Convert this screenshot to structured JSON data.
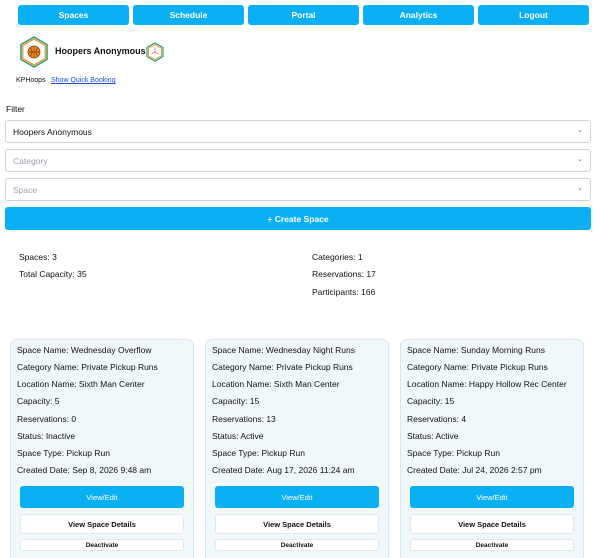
{
  "nav": [
    "Spaces",
    "Schedule",
    "Portal",
    "Analytics",
    "Logout"
  ],
  "org": {
    "name": "Hoopers Anonymous",
    "handle": "KPHoops",
    "quick_booking_link": "Show Quick Booking"
  },
  "filter": {
    "label": "Filter",
    "organization_value": "Hoopers Anonymous",
    "category_placeholder": "Category",
    "space_placeholder": "Space"
  },
  "create_button": "+ Create Space",
  "stats": {
    "spaces": "Spaces: 3",
    "total_capacity": "Total Capacity: 35",
    "categories": "Categories: 1",
    "reservations": "Reservations: 17",
    "participants": "Participants: 166"
  },
  "cards": [
    {
      "space_name": "Space Name: Wednesday Overflow",
      "category_name": "Category Name: Private Pickup Runs",
      "location_name": "Location Name: Sixth Man Center",
      "capacity": "Capacity: 5",
      "reservations": "Reservations: 0",
      "status": "Status: Inactive",
      "space_type": "Space Type: Pickup Run",
      "created_date": "Created Date: Sep 8, 2026 9:48 am",
      "view_edit": "View/Edit",
      "view_details": "View Space Details",
      "deactivate": "Deactivate"
    },
    {
      "space_name": "Space Name: Wednesday Night Runs",
      "category_name": "Category Name: Private Pickup Runs",
      "location_name": "Location Name: Sixth Man Center",
      "capacity": "Capacity: 15",
      "reservations": "Reservations: 13",
      "status": "Status: Active",
      "space_type": "Space Type: Pickup Run",
      "created_date": "Created Date: Aug 17, 2026 11:24 am",
      "view_edit": "View/Edit",
      "view_details": "View Space Details",
      "deactivate": "Deactivate"
    },
    {
      "space_name": "Space Name: Sunday Morning Runs",
      "category_name": "Category Name: Private Pickup Runs",
      "location_name": "Location Name: Happy Hollow Rec Center",
      "capacity": "Capacity: 15",
      "reservations": "Reservations: 4",
      "status": "Status: Active",
      "space_type": "Space Type: Pickup Run",
      "created_date": "Created Date: Jul 24, 2026 2:57 pm",
      "view_edit": "View/Edit",
      "view_details": "View Space Details",
      "deactivate": "Deactivate"
    }
  ],
  "icons": {
    "org_logo": "basketball-hexagon-logo",
    "cube": "cube-icon",
    "chevron": "chevron-down-icon"
  },
  "colors": {
    "accent": "#0bb0f4",
    "card_bg": "#f1f8fc",
    "link": "#1d4ed8"
  }
}
